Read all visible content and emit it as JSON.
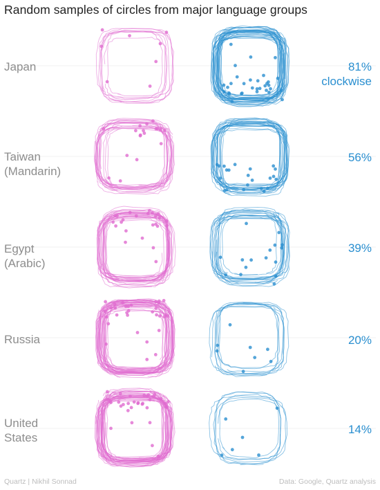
{
  "title": "Random samples of circles from major language groups",
  "chart_data": {
    "type": "other",
    "description_units": "percent of sampled circles drawn clockwise",
    "groups": [
      {
        "label": "Japan",
        "pct_clockwise": 81,
        "pct_label": "81%",
        "pct_sublabel": "clockwise"
      },
      {
        "label": "Taiwan (Mandarin)",
        "pct_clockwise": 56,
        "pct_label": "56%",
        "pct_sublabel": ""
      },
      {
        "label": "Egypt (Arabic)",
        "pct_clockwise": 39,
        "pct_label": "39%",
        "pct_sublabel": ""
      },
      {
        "label": "Russia",
        "pct_clockwise": 20,
        "pct_label": "20%",
        "pct_sublabel": ""
      },
      {
        "label": "United States",
        "pct_clockwise": 14,
        "pct_label": "14%",
        "pct_sublabel": ""
      }
    ],
    "colors": {
      "counterclockwise": "#e06ccf",
      "clockwise": "#2a8fd0"
    }
  },
  "labels": {
    "japan": "Japan",
    "taiwan_line1": "Taiwan",
    "taiwan_line2": "(Mandarin)",
    "egypt_line1": "Egypt",
    "egypt_line2": "(Arabic)",
    "russia": "Russia",
    "us_line1": "United",
    "us_line2": "States"
  },
  "footer": {
    "left": "Quartz | Nikhil Sonnad",
    "right": "Data: Google, Quartz analysis"
  }
}
